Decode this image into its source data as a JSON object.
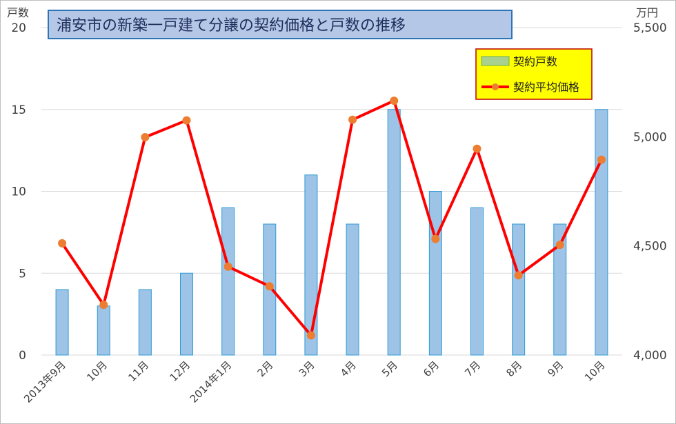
{
  "chart_data": {
    "type": "bar+line",
    "title": "浦安市の新築一戸建て分譲の契約価格と戸数の推移",
    "categories": [
      "2013年9月",
      "10月",
      "11月",
      "12月",
      "2014年1月",
      "2月",
      "3月",
      "4月",
      "5月",
      "6月",
      "7月",
      "8月",
      "9月",
      "10月"
    ],
    "series": [
      {
        "name": "契約戸数",
        "type": "bar",
        "axis": "left",
        "values": [
          4,
          3,
          4,
          5,
          9,
          8,
          11,
          8,
          15,
          10,
          9,
          8,
          8,
          15
        ]
      },
      {
        "name": "契約平均価格",
        "type": "line",
        "axis": "right",
        "values": [
          4512,
          4230,
          4998,
          5075,
          4405,
          4315,
          4090,
          5078,
          5165,
          4532,
          4945,
          4365,
          4505,
          4895
        ]
      }
    ],
    "left_axis": {
      "unit": "戸数",
      "ylim": [
        0,
        20
      ],
      "ticks": [
        0,
        5,
        10,
        15,
        20
      ]
    },
    "right_axis": {
      "unit": "万円",
      "ylim": [
        4000,
        5500
      ],
      "ticks": [
        "4,000",
        "4,500",
        "5,000",
        "5,500"
      ]
    },
    "grid": true,
    "legend": "top-right",
    "colors": {
      "bar_fill": "#9dc3e6",
      "bar_stroke": "#2e9bd6",
      "line": "#ff0000",
      "marker": "#ed7d31",
      "grid": "#d9d9d9",
      "title_bg": "#b4c7e7",
      "title_border": "#2e75b6",
      "legend_bg": "#ffff00",
      "legend_border": "#c00000",
      "legend_bar_fill": "#a9d18e",
      "legend_bar_stroke": "#70ad47"
    }
  }
}
